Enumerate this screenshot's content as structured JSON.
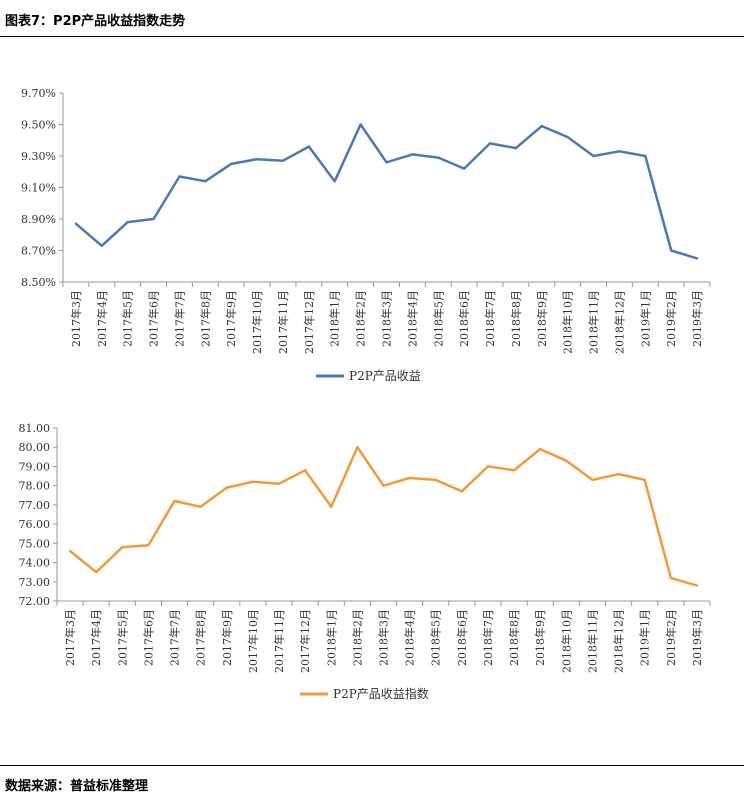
{
  "header": {
    "title": "图表7：P2P产品收益指数走势"
  },
  "footer": {
    "source": "数据来源：普益标准整理"
  },
  "colors": {
    "series1": "#4a7ab5",
    "series2": "#f29a3b",
    "axis": "#999999"
  },
  "chart_data": [
    {
      "type": "line",
      "title": "",
      "categories": [
        "2017年3月",
        "2017年4月",
        "2017年5月",
        "2017年6月",
        "2017年7月",
        "2017年8月",
        "2017年9月",
        "2017年10月",
        "2017年11月",
        "2017年12月",
        "2018年1月",
        "2018年2月",
        "2018年3月",
        "2018年4月",
        "2018年5月",
        "2018年6月",
        "2018年7月",
        "2018年8月",
        "2018年9月",
        "2018年10月",
        "2018年11月",
        "2018年12月",
        "2019年1月",
        "2019年2月",
        "2019年3月"
      ],
      "series": [
        {
          "name": "P2P产品收益",
          "values": [
            8.87,
            8.73,
            8.88,
            8.9,
            9.17,
            9.14,
            9.25,
            9.28,
            9.27,
            9.36,
            9.14,
            9.5,
            9.26,
            9.31,
            9.29,
            9.22,
            9.38,
            9.35,
            9.49,
            9.42,
            9.3,
            9.33,
            9.3,
            8.7,
            8.65
          ]
        }
      ],
      "ylim": [
        8.5,
        9.7
      ],
      "yticks": [
        "8.50%",
        "8.70%",
        "8.90%",
        "9.10%",
        "9.30%",
        "9.50%",
        "9.70%"
      ],
      "legend": "bottom"
    },
    {
      "type": "line",
      "title": "",
      "categories": [
        "2017年3月",
        "2017年4月",
        "2017年5月",
        "2017年6月",
        "2017年7月",
        "2017年8月",
        "2017年9月",
        "2017年10月",
        "2017年11月",
        "2017年12月",
        "2018年1月",
        "2018年2月",
        "2018年3月",
        "2018年4月",
        "2018年5月",
        "2018年6月",
        "2018年7月",
        "2018年8月",
        "2018年9月",
        "2018年10月",
        "2018年11月",
        "2018年12月",
        "2019年1月",
        "2019年2月",
        "2019年3月"
      ],
      "series": [
        {
          "name": "P2P产品收益指数",
          "values": [
            74.6,
            73.5,
            74.8,
            74.9,
            77.2,
            76.9,
            77.9,
            78.2,
            78.1,
            78.8,
            76.9,
            80.0,
            78.0,
            78.4,
            78.3,
            77.7,
            79.0,
            78.8,
            79.9,
            79.3,
            78.3,
            78.6,
            78.3,
            73.2,
            72.8
          ]
        }
      ],
      "ylim": [
        72.0,
        81.0
      ],
      "yticks": [
        "72.00",
        "73.00",
        "74.00",
        "75.00",
        "76.00",
        "77.00",
        "78.00",
        "79.00",
        "80.00",
        "81.00"
      ],
      "legend": "bottom"
    }
  ]
}
